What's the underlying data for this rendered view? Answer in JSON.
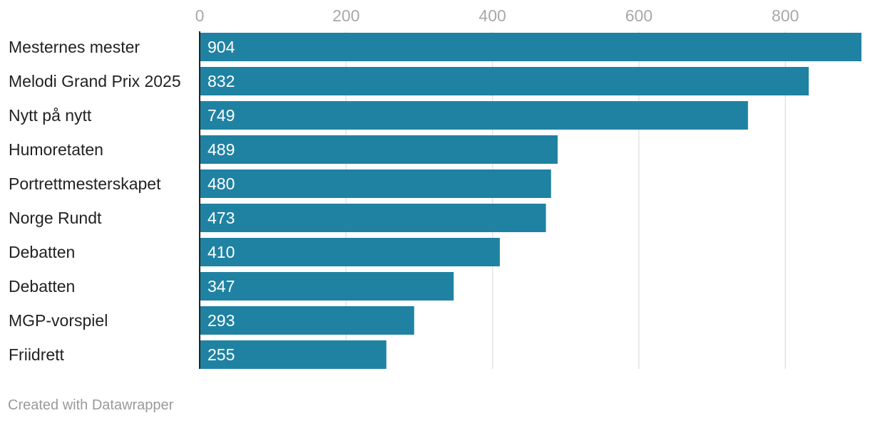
{
  "chart_data": {
    "type": "bar",
    "orientation": "horizontal",
    "categories": [
      "Mesternes mester",
      "Melodi Grand Prix 2025",
      "Nytt på nytt",
      "Humoretaten",
      "Portrettmesterskapet",
      "Norge Rundt",
      "Debatten",
      "Debatten",
      "MGP-vorspiel",
      "Friidrett"
    ],
    "values": [
      904,
      832,
      749,
      489,
      480,
      473,
      410,
      347,
      293,
      255
    ],
    "xticks": [
      0,
      200,
      400,
      600,
      800
    ],
    "xlim": [
      0,
      904
    ],
    "grid": true,
    "bar_color": "#1f82a3",
    "data_labels": true
  },
  "footer": {
    "credit": "Created with Datawrapper"
  }
}
